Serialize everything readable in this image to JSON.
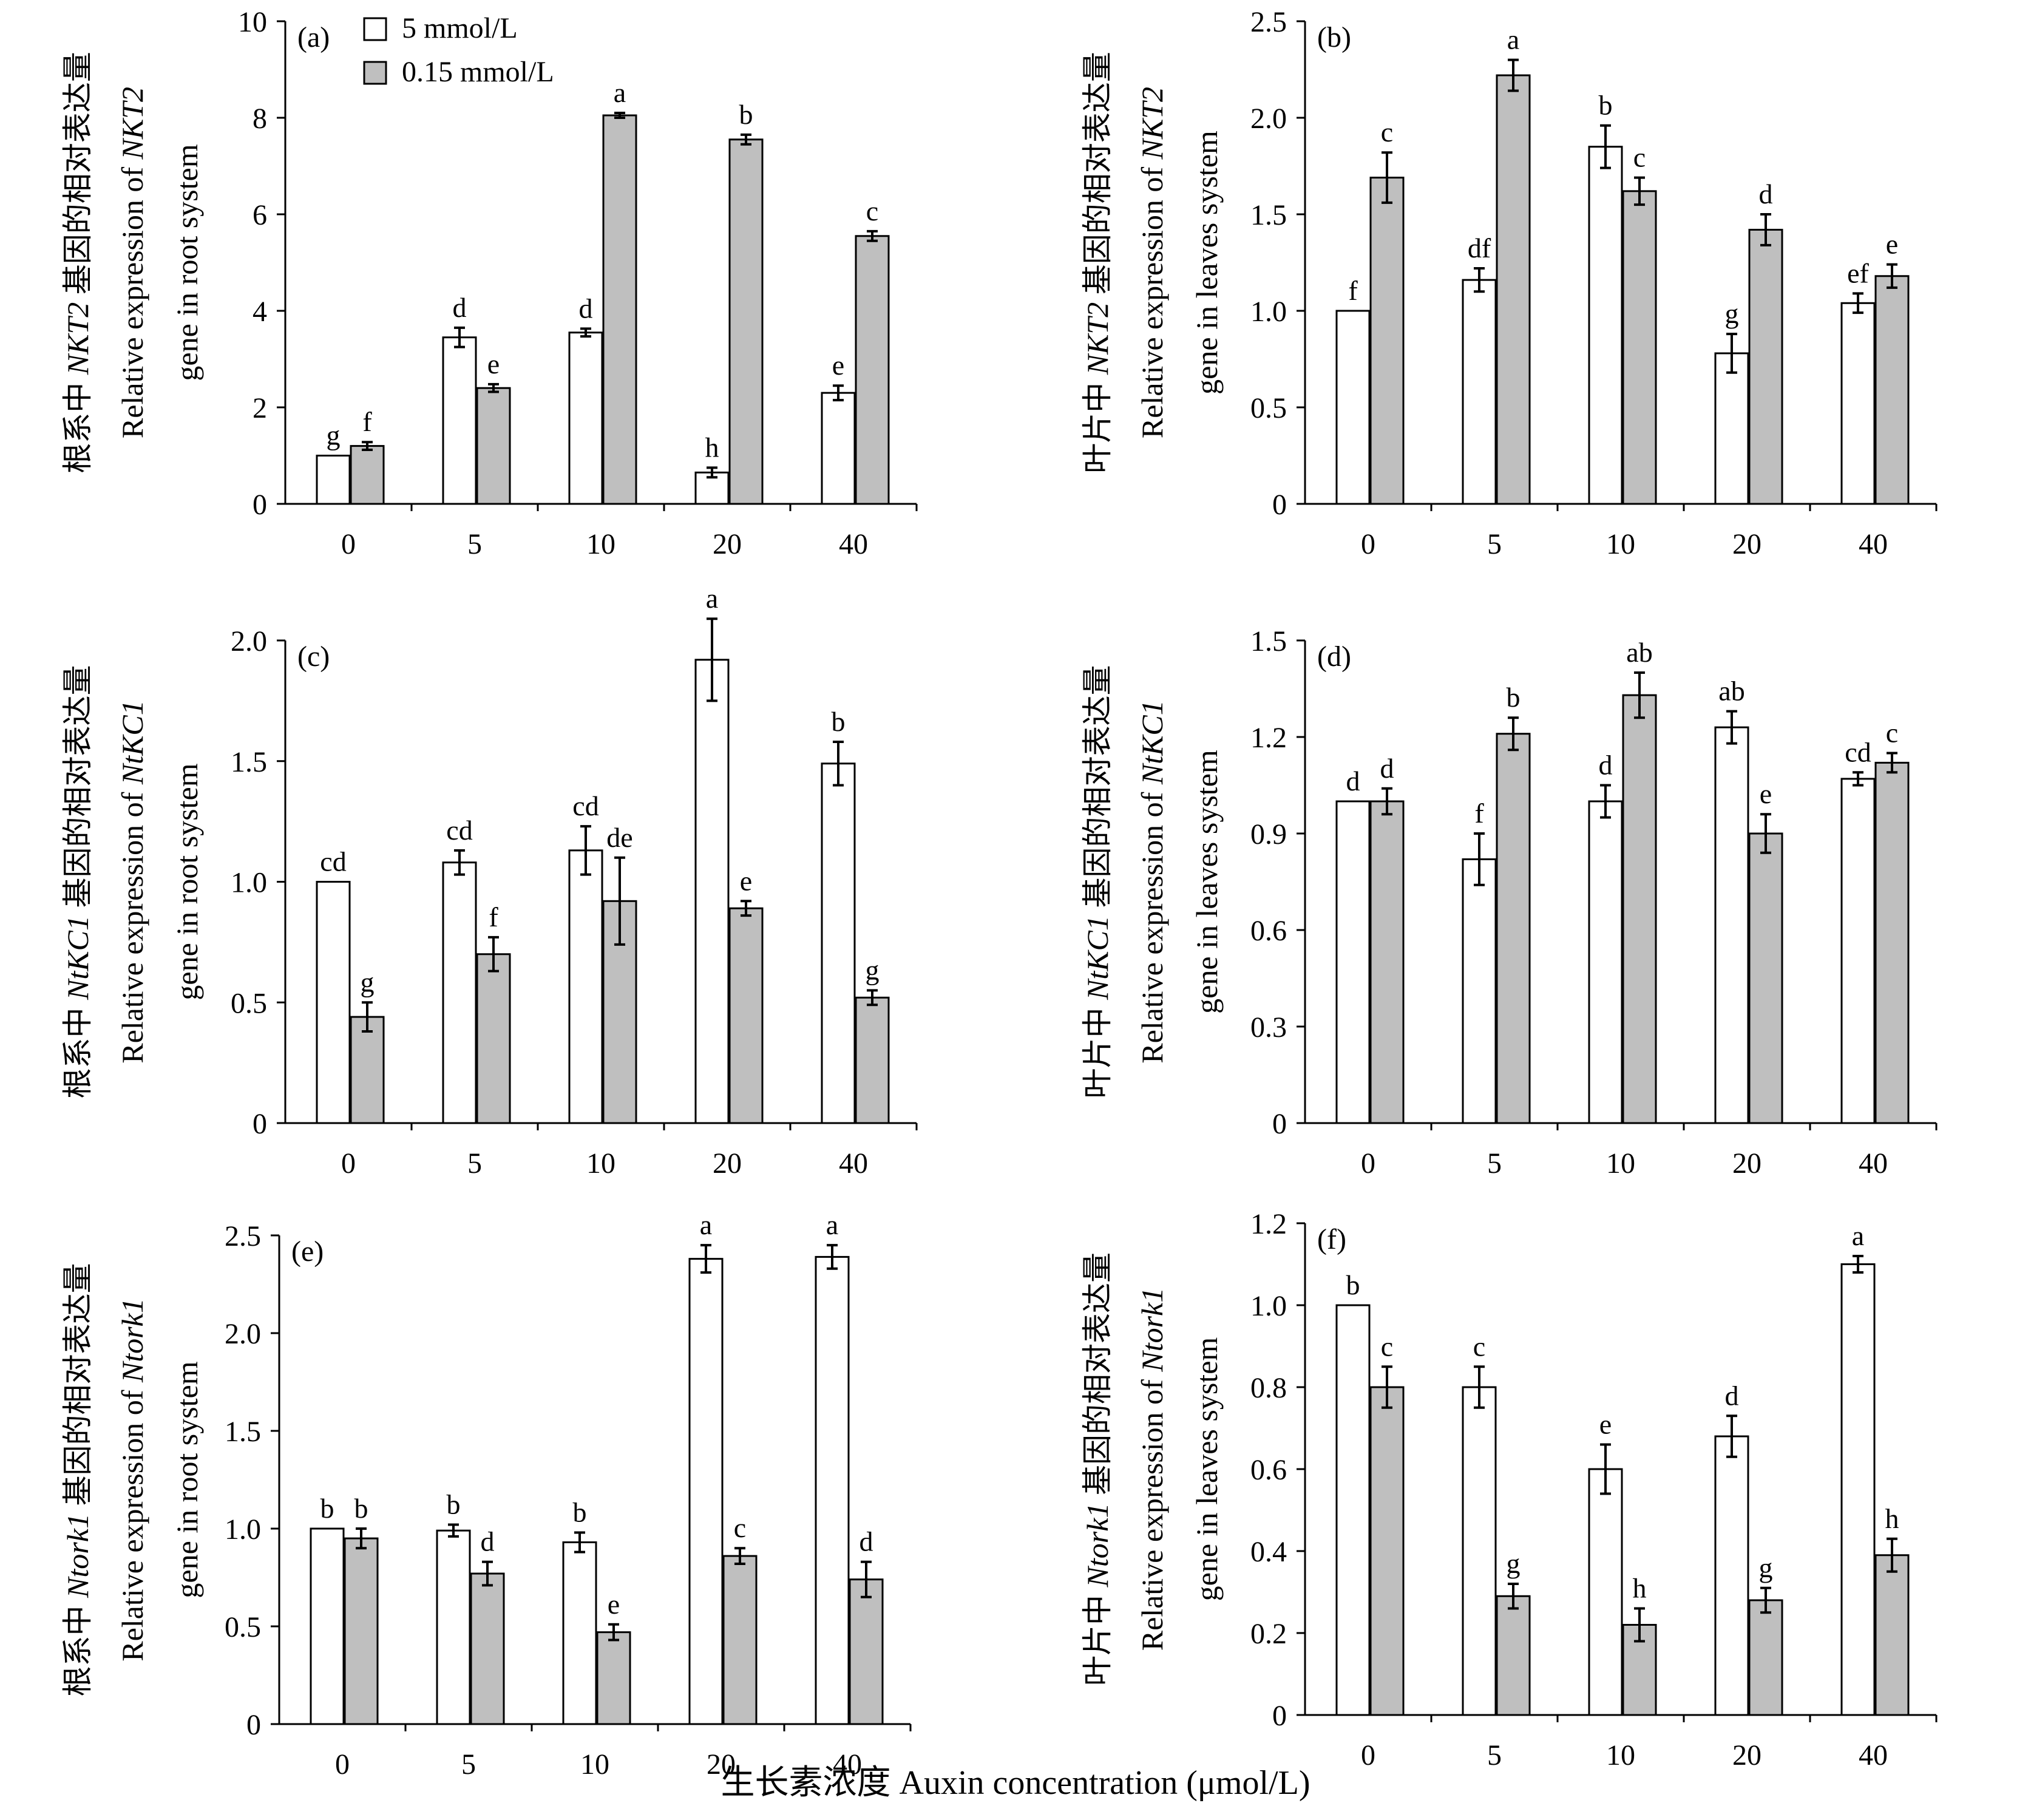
{
  "xlabel": "生长素浓度 Auxin concentration (μmol/L)",
  "legend": [
    {
      "name": "5 mmol/L",
      "color": "#ffffff"
    },
    {
      "name": "0.15 mmol/L",
      "color": "#bfbfbf"
    }
  ],
  "chart_data": [
    {
      "panel": "(a)",
      "type": "bar",
      "categories": [
        "0",
        "5",
        "10",
        "20",
        "40"
      ],
      "ylim": [
        0,
        10
      ],
      "yticks": [
        0,
        2,
        4,
        6,
        8,
        10
      ],
      "ylabel_cn": "根系中",
      "ylabel_gene": "NKT2",
      "ylabel_cn2": " 基因的相对表达量",
      "ylabel_en1": "Relative expression of ",
      "ylabel_en_gene": "NKT2",
      "ylabel_en2": "gene in root system",
      "series": [
        {
          "name": "5 mmol/L",
          "values": [
            1.0,
            3.45,
            3.55,
            0.65,
            2.3
          ],
          "errors": [
            0,
            0.2,
            0.08,
            0.1,
            0.15
          ],
          "letters": [
            "g",
            "d",
            "d",
            "h",
            "e"
          ]
        },
        {
          "name": "0.15 mmol/L",
          "values": [
            1.2,
            2.4,
            8.05,
            7.55,
            5.55
          ],
          "errors": [
            0.08,
            0.08,
            0.05,
            0.1,
            0.1
          ],
          "letters": [
            "f",
            "e",
            "a",
            "b",
            "c"
          ]
        }
      ]
    },
    {
      "panel": "(b)",
      "type": "bar",
      "categories": [
        "0",
        "5",
        "10",
        "20",
        "40"
      ],
      "ylim": [
        0,
        2.5
      ],
      "yticks": [
        "0",
        "0.5",
        "1.0",
        "1.5",
        "2.0",
        "2.5"
      ],
      "ylabel_cn": "叶片中",
      "ylabel_gene": "NKT2",
      "ylabel_cn2": " 基因的相对表达量",
      "ylabel_en1": "Relative expression of ",
      "ylabel_en_gene": "NKT2",
      "ylabel_en2": "gene in leaves system",
      "series": [
        {
          "name": "5 mmol/L",
          "values": [
            1.0,
            1.16,
            1.85,
            0.78,
            1.04
          ],
          "errors": [
            0,
            0.06,
            0.11,
            0.1,
            0.05
          ],
          "letters": [
            "f",
            "df",
            "b",
            "g",
            "ef"
          ]
        },
        {
          "name": "0.15 mmol/L",
          "values": [
            1.69,
            2.22,
            1.62,
            1.42,
            1.18
          ],
          "errors": [
            0.13,
            0.08,
            0.07,
            0.08,
            0.06
          ],
          "letters": [
            "c",
            "a",
            "c",
            "d",
            "e"
          ]
        }
      ]
    },
    {
      "panel": "(c)",
      "type": "bar",
      "categories": [
        "0",
        "5",
        "10",
        "20",
        "40"
      ],
      "ylim": [
        0,
        2.0
      ],
      "yticks": [
        "0",
        "0.5",
        "1.0",
        "1.5",
        "2.0"
      ],
      "ylabel_cn": "根系中",
      "ylabel_gene": "NtKC1",
      "ylabel_cn2": " 基因的相对表达量",
      "ylabel_en1": "Relative expression of ",
      "ylabel_en_gene": "NtKC1",
      "ylabel_en2": "gene in root system",
      "series": [
        {
          "name": "5 mmol/L",
          "values": [
            1.0,
            1.08,
            1.13,
            1.92,
            1.49
          ],
          "errors": [
            0,
            0.05,
            0.1,
            0.17,
            0.09
          ],
          "letters": [
            "cd",
            "cd",
            "cd",
            "a",
            "b"
          ]
        },
        {
          "name": "0.15 mmol/L",
          "values": [
            0.44,
            0.7,
            0.92,
            0.89,
            0.52
          ],
          "errors": [
            0.06,
            0.07,
            0.18,
            0.03,
            0.03
          ],
          "letters": [
            "g",
            "f",
            "de",
            "e",
            "g"
          ]
        }
      ]
    },
    {
      "panel": "(d)",
      "type": "bar",
      "categories": [
        "0",
        "5",
        "10",
        "20",
        "40"
      ],
      "ylim": [
        0,
        1.5
      ],
      "yticks": [
        "0",
        "0.3",
        "0.6",
        "0.9",
        "1.2",
        "1.5"
      ],
      "ylabel_cn": "叶片中",
      "ylabel_gene": "NtKC1",
      "ylabel_cn2": " 基因的相对表达量",
      "ylabel_en1": "Relative expression of ",
      "ylabel_en_gene": "NtKC1",
      "ylabel_en2": "gene in leaves system",
      "series": [
        {
          "name": "5 mmol/L",
          "values": [
            1.0,
            0.82,
            1.0,
            1.23,
            1.07
          ],
          "errors": [
            0,
            0.08,
            0.05,
            0.05,
            0.02
          ],
          "letters": [
            "d",
            "f",
            "d",
            "ab",
            "cd"
          ]
        },
        {
          "name": "0.15 mmol/L",
          "values": [
            1.0,
            1.21,
            1.33,
            0.9,
            1.12
          ],
          "errors": [
            0.04,
            0.05,
            0.07,
            0.06,
            0.03
          ],
          "letters": [
            "d",
            "b",
            "ab",
            "e",
            "c"
          ]
        }
      ]
    },
    {
      "panel": "(e)",
      "type": "bar",
      "categories": [
        "0",
        "5",
        "10",
        "20",
        "40"
      ],
      "ylim": [
        0,
        2.5
      ],
      "yticks": [
        "0",
        "0.5",
        "1.0",
        "1.5",
        "2.0",
        "2.5"
      ],
      "ylabel_cn": "根系中",
      "ylabel_gene": "Ntork1",
      "ylabel_cn2": " 基因的相对表达量",
      "ylabel_en1": "Relative expression of ",
      "ylabel_en_gene": "Ntork1",
      "ylabel_en2": "gene in root system",
      "series": [
        {
          "name": "5 mmol/L",
          "values": [
            1.0,
            0.99,
            0.93,
            2.38,
            2.39
          ],
          "errors": [
            0,
            0.03,
            0.05,
            0.07,
            0.06
          ],
          "letters": [
            "b",
            "b",
            "b",
            "a",
            "a"
          ]
        },
        {
          "name": "0.15 mmol/L",
          "values": [
            0.95,
            0.77,
            0.47,
            0.86,
            0.74
          ],
          "errors": [
            0.05,
            0.06,
            0.04,
            0.04,
            0.09
          ],
          "letters": [
            "b",
            "d",
            "e",
            "c",
            "d"
          ]
        }
      ]
    },
    {
      "panel": "(f)",
      "type": "bar",
      "categories": [
        "0",
        "5",
        "10",
        "20",
        "40"
      ],
      "ylim": [
        0,
        1.2
      ],
      "yticks": [
        "0",
        "0.2",
        "0.4",
        "0.6",
        "0.8",
        "1.0",
        "1.2"
      ],
      "ylabel_cn": "叶片中",
      "ylabel_gene": "Ntork1",
      "ylabel_cn2": " 基因的相对表达量",
      "ylabel_en1": "Relative expression of ",
      "ylabel_en_gene": "Ntork1",
      "ylabel_en2": "gene in leaves system",
      "series": [
        {
          "name": "5 mmol/L",
          "values": [
            1.0,
            0.8,
            0.6,
            0.68,
            1.1
          ],
          "errors": [
            0,
            0.05,
            0.06,
            0.05,
            0.02
          ],
          "letters": [
            "b",
            "c",
            "e",
            "d",
            "a"
          ]
        },
        {
          "name": "0.15 mmol/L",
          "values": [
            0.8,
            0.29,
            0.22,
            0.28,
            0.39
          ],
          "errors": [
            0.05,
            0.03,
            0.04,
            0.03,
            0.04
          ],
          "letters": [
            "c",
            "g",
            "h",
            "g",
            "h"
          ]
        }
      ]
    }
  ]
}
